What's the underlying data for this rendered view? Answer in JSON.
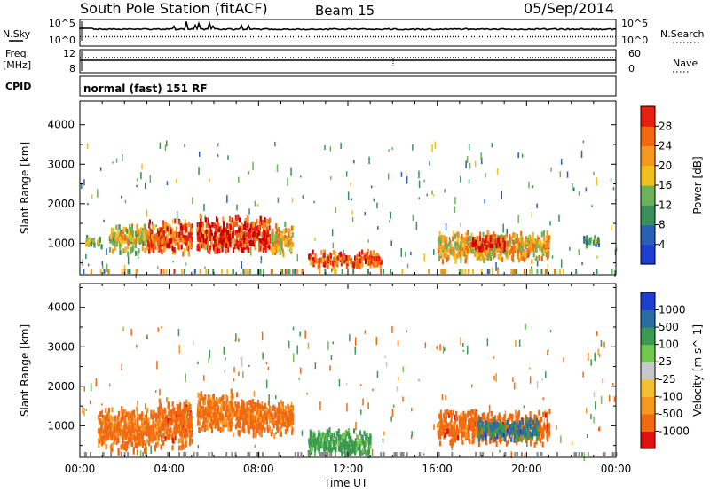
{
  "header": {
    "station": "South Pole Station (fitACF)",
    "beam": "Beam 15",
    "date": "05/Sep/2014"
  },
  "left_labels": {
    "nsky": "N.Sky",
    "freq_line1": "Freq.",
    "freq_line2": "[MHz]",
    "cpid": "CPID"
  },
  "right_labels": {
    "nsearch": "N.Search",
    "nave": "Nave"
  },
  "cpid_text": "normal (fast) 151 RF",
  "x_axis": {
    "title": "Time UT",
    "ticks": [
      "00:00",
      "04:00",
      "08:00",
      "12:00",
      "16:00",
      "20:00",
      "00:00"
    ]
  },
  "colors": {
    "power": [
      "#1f3fd0",
      "#2a5fb8",
      "#3a8f5a",
      "#6ab35a",
      "#f0c020",
      "#f59a20",
      "#f26a10",
      "#e82010",
      "#cc0000"
    ],
    "velocity_neg": [
      "#e01010",
      "#f26a10",
      "#f59a20",
      "#f5c030"
    ],
    "velocity_zero": "#c8c8c8",
    "velocity_pos": [
      "#70c850",
      "#3a9a50",
      "#2a6ea0",
      "#1f3fd0"
    ],
    "ground_scatter": "#8a8a8a"
  },
  "chart_data": [
    {
      "type": "line",
      "panel": "noise-and-search",
      "left_axis": {
        "label": "N.Sky",
        "ticks": [
          "10^5",
          "10^0"
        ]
      },
      "right_axis": {
        "label": "N.Search",
        "ticks": [
          "10^5",
          "10^0"
        ]
      },
      "x_range_hours": [
        0,
        24
      ]
    },
    {
      "type": "line",
      "panel": "frequency-and-nave",
      "left_axis": {
        "label": "Freq. [MHz]",
        "ticks": [
          "12",
          "8"
        ]
      },
      "right_axis": {
        "label": "Nave",
        "ticks": [
          "60",
          "0"
        ]
      },
      "x_range_hours": [
        0,
        24
      ]
    },
    {
      "type": "heatmap",
      "panel": "power",
      "ylabel": "Slant Range [km]",
      "yticks": [
        1000,
        2000,
        3000,
        4000
      ],
      "ylim": [
        200,
        4600
      ],
      "xlim_hours": [
        0,
        24
      ],
      "colorbar": {
        "label": "Power [dB]",
        "ticks": [
          4,
          8,
          12,
          16,
          20,
          24,
          28
        ],
        "range": [
          0,
          32
        ]
      },
      "regions": [
        {
          "t": [
            0.2,
            1.0
          ],
          "r": [
            900,
            1200
          ],
          "level": 14
        },
        {
          "t": [
            1.3,
            3.0
          ],
          "r": [
            700,
            1500
          ],
          "level": 16
        },
        {
          "t": [
            3.0,
            5.0
          ],
          "r": [
            700,
            1600
          ],
          "level": 24
        },
        {
          "t": [
            5.2,
            8.5
          ],
          "r": [
            700,
            1700
          ],
          "level": 26
        },
        {
          "t": [
            8.5,
            9.5
          ],
          "r": [
            700,
            1500
          ],
          "level": 18
        },
        {
          "t": [
            10.2,
            13.5
          ],
          "r": [
            350,
            800
          ],
          "level": 24
        },
        {
          "t": [
            16.0,
            21.0
          ],
          "r": [
            500,
            1300
          ],
          "level": 18
        },
        {
          "t": [
            17.5,
            19.0
          ],
          "r": [
            800,
            1200
          ],
          "level": 26
        },
        {
          "t": [
            22.5,
            23.2
          ],
          "r": [
            900,
            1200
          ],
          "level": 8
        }
      ]
    },
    {
      "type": "heatmap",
      "panel": "velocity",
      "ylabel": "Slant Range [km]",
      "yticks": [
        1000,
        2000,
        3000,
        4000
      ],
      "ylim": [
        200,
        4600
      ],
      "xlim_hours": [
        0,
        24
      ],
      "colorbar": {
        "label": "Velocity [m s^-1]",
        "ticks": [
          1000,
          500,
          100,
          25,
          -25,
          -100,
          -500,
          -1000
        ]
      },
      "regions": [
        {
          "t": [
            0.8,
            3.5
          ],
          "r": [
            300,
            1500
          ],
          "velocity": -200
        },
        {
          "t": [
            3.5,
            5.0
          ],
          "r": [
            400,
            1700
          ],
          "velocity": -300
        },
        {
          "t": [
            5.2,
            7.0
          ],
          "r": [
            800,
            1900
          ],
          "velocity": -150
        },
        {
          "t": [
            7.0,
            9.5
          ],
          "r": [
            700,
            1700
          ],
          "velocity": -250
        },
        {
          "t": [
            10.2,
            13.0
          ],
          "r": [
            200,
            900
          ],
          "velocity": 200
        },
        {
          "t": [
            16.0,
            21.0
          ],
          "r": [
            500,
            1400
          ],
          "velocity": -300
        },
        {
          "t": [
            17.8,
            20.5
          ],
          "r": [
            600,
            1200
          ],
          "velocity": 600
        }
      ]
    }
  ]
}
